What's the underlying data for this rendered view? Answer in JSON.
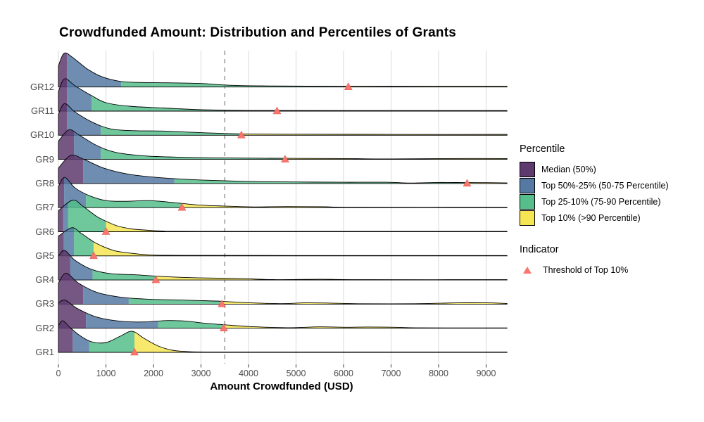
{
  "chart": {
    "title": "Crowdfunded Amount: Distribution and Percentiles of Grants",
    "x_axis_title": "Amount Crowdfunded (USD)",
    "legend": {
      "percentile_title": "Percentile",
      "items": [
        {
          "label": "Median (50%)",
          "color": "#5E3A6F"
        },
        {
          "label": "Top 50%-25% (50-75 Percentile)",
          "color": "#5579A3"
        },
        {
          "label": "Top 25-10% (75-90 Percentile)",
          "color": "#55BE8B"
        },
        {
          "label": "Top 10% (>90 Percentile)",
          "color": "#F6E553"
        }
      ],
      "indicator_title": "Indicator",
      "indicator_label": "Threshold of Top 10%",
      "indicator_color": "#F8766D"
    }
  },
  "chart_data": {
    "type": "ridgeline-density-with-percentile-bands",
    "title": "Crowdfunded Amount: Distribution and Percentiles of Grants",
    "xlabel": "Amount Crowdfunded (USD)",
    "x_ticks": [
      0,
      1000,
      2000,
      3000,
      4000,
      5000,
      6000,
      7000,
      8000,
      9000
    ],
    "x_range": [
      0,
      9440
    ],
    "reference_line_x": 3500,
    "band_colors": {
      "median_50": "#5E3A6F",
      "p50_75": "#5579A3",
      "p75_90": "#55BE8B",
      "top10": "#F6E553"
    },
    "threshold_marker_color": "#F8766D",
    "groups_bottom_to_top": [
      {
        "label": "GR1",
        "median": 300,
        "p75": 650,
        "p90_threshold": 1600,
        "density_profile": [
          [
            0,
            38
          ],
          [
            90,
            45
          ],
          [
            250,
            35
          ],
          [
            450,
            24
          ],
          [
            700,
            15
          ],
          [
            1000,
            14
          ],
          [
            1300,
            23
          ],
          [
            1550,
            30
          ],
          [
            1800,
            20
          ],
          [
            2100,
            9
          ],
          [
            2400,
            3
          ],
          [
            2700,
            1.2
          ],
          [
            3200,
            0.6
          ],
          [
            6000,
            0.5
          ],
          [
            9440,
            0.5
          ]
        ]
      },
      {
        "label": "GR2",
        "median": 580,
        "p75": 2100,
        "p90_threshold": 3480,
        "density_profile": [
          [
            0,
            36
          ],
          [
            140,
            40
          ],
          [
            400,
            28
          ],
          [
            800,
            16
          ],
          [
            1300,
            10
          ],
          [
            1800,
            9
          ],
          [
            2300,
            11
          ],
          [
            2700,
            10
          ],
          [
            3100,
            7
          ],
          [
            3480,
            5
          ],
          [
            4000,
            2.5
          ],
          [
            4800,
            0.8
          ],
          [
            5500,
            2
          ],
          [
            6100,
            1.4
          ],
          [
            6500,
            1.8
          ],
          [
            7100,
            1.4
          ],
          [
            7600,
            0.6
          ],
          [
            9440,
            0.5
          ]
        ]
      },
      {
        "label": "GR3",
        "median": 520,
        "p75": 1480,
        "p90_threshold": 3440,
        "density_profile": [
          [
            0,
            30
          ],
          [
            160,
            44
          ],
          [
            420,
            30
          ],
          [
            800,
            17
          ],
          [
            1300,
            10
          ],
          [
            1900,
            7
          ],
          [
            2500,
            6
          ],
          [
            3000,
            5
          ],
          [
            3440,
            4
          ],
          [
            4000,
            2
          ],
          [
            4700,
            0.7
          ],
          [
            5200,
            1.8
          ],
          [
            5700,
            1.5
          ],
          [
            6300,
            0.6
          ],
          [
            7500,
            0.6
          ],
          [
            8400,
            1.8
          ],
          [
            9000,
            1.8
          ],
          [
            9440,
            1
          ]
        ]
      },
      {
        "label": "GR4",
        "median": 250,
        "p75": 720,
        "p90_threshold": 2050,
        "density_profile": [
          [
            0,
            34
          ],
          [
            130,
            42
          ],
          [
            350,
            28
          ],
          [
            700,
            15
          ],
          [
            1100,
            9
          ],
          [
            1600,
            7.5
          ],
          [
            2050,
            5.5
          ],
          [
            2500,
            4
          ],
          [
            3000,
            3
          ],
          [
            3840,
            2
          ],
          [
            4500,
            0.6
          ],
          [
            5500,
            1
          ],
          [
            6500,
            0.5
          ],
          [
            9440,
            0.5
          ]
        ]
      },
      {
        "label": "GR5",
        "median": 110,
        "p75": 330,
        "p90_threshold": 740,
        "density_profile": [
          [
            0,
            28
          ],
          [
            280,
            40
          ],
          [
            480,
            32
          ],
          [
            740,
            20
          ],
          [
            950,
            13
          ],
          [
            1200,
            7
          ],
          [
            1500,
            4
          ],
          [
            1800,
            2
          ],
          [
            2300,
            0.8
          ],
          [
            5000,
            0.5
          ],
          [
            9440,
            0.5
          ]
        ]
      },
      {
        "label": "GR6",
        "median": 100,
        "p75": 200,
        "p90_threshold": 1000,
        "density_profile": [
          [
            0,
            30
          ],
          [
            300,
            45
          ],
          [
            520,
            36
          ],
          [
            800,
            22
          ],
          [
            1000,
            15
          ],
          [
            1250,
            8
          ],
          [
            1550,
            4
          ],
          [
            1800,
            2.5
          ],
          [
            2200,
            1
          ],
          [
            3000,
            0.6
          ],
          [
            9440,
            0.5
          ]
        ]
      },
      {
        "label": "GR7",
        "median": 120,
        "p75": 580,
        "p90_threshold": 2600,
        "density_profile": [
          [
            0,
            30
          ],
          [
            130,
            43
          ],
          [
            350,
            28
          ],
          [
            650,
            17
          ],
          [
            1000,
            10
          ],
          [
            1400,
            9
          ],
          [
            1900,
            10
          ],
          [
            2300,
            8
          ],
          [
            2600,
            6
          ],
          [
            3000,
            3.5
          ],
          [
            3600,
            2
          ],
          [
            4100,
            1
          ],
          [
            4800,
            1.5
          ],
          [
            5600,
            1.2
          ],
          [
            6200,
            0.6
          ],
          [
            9440,
            0.6
          ]
        ]
      },
      {
        "label": "GR8",
        "median": 520,
        "p75": 2440,
        "p90_threshold": 8600,
        "density_profile": [
          [
            0,
            22
          ],
          [
            260,
            40
          ],
          [
            550,
            34
          ],
          [
            950,
            22
          ],
          [
            1500,
            13
          ],
          [
            2200,
            8
          ],
          [
            3000,
            5
          ],
          [
            4000,
            3
          ],
          [
            5000,
            2.2
          ],
          [
            6000,
            1.8
          ],
          [
            6900,
            1.8
          ],
          [
            7400,
            0.7
          ],
          [
            8000,
            1.5
          ],
          [
            8600,
            1.3
          ],
          [
            9000,
            1.2
          ],
          [
            9440,
            0.8
          ]
        ]
      },
      {
        "label": "GR9",
        "median": 330,
        "p75": 890,
        "p90_threshold": 4770,
        "density_profile": [
          [
            0,
            26
          ],
          [
            220,
            42
          ],
          [
            450,
            34
          ],
          [
            800,
            20
          ],
          [
            1200,
            10
          ],
          [
            1800,
            5
          ],
          [
            2600,
            3
          ],
          [
            3500,
            2
          ],
          [
            4770,
            1.5
          ],
          [
            6000,
            1.2
          ],
          [
            7000,
            0.6
          ],
          [
            8200,
            1.2
          ],
          [
            9440,
            1.2
          ]
        ]
      },
      {
        "label": "GR10",
        "median": 180,
        "p75": 890,
        "p90_threshold": 3850,
        "density_profile": [
          [
            0,
            30
          ],
          [
            130,
            45
          ],
          [
            350,
            33
          ],
          [
            700,
            19
          ],
          [
            1100,
            9
          ],
          [
            1600,
            6.5
          ],
          [
            2200,
            6
          ],
          [
            2900,
            4
          ],
          [
            3850,
            2
          ],
          [
            5000,
            1.5
          ],
          [
            7000,
            1.2
          ],
          [
            9440,
            1.2
          ]
        ]
      },
      {
        "label": "GR11",
        "median": 180,
        "p75": 700,
        "p90_threshold": 4600,
        "density_profile": [
          [
            0,
            28
          ],
          [
            130,
            46
          ],
          [
            350,
            36
          ],
          [
            700,
            22
          ],
          [
            1000,
            12
          ],
          [
            1500,
            7
          ],
          [
            2200,
            4.5
          ],
          [
            3000,
            2
          ],
          [
            3800,
            1
          ],
          [
            4600,
            0.9
          ],
          [
            7000,
            0.8
          ],
          [
            9440,
            0.8
          ]
        ]
      },
      {
        "label": "GR12",
        "median": 180,
        "p75": 1320,
        "p90_threshold": 6100,
        "density_profile": [
          [
            0,
            30
          ],
          [
            120,
            48
          ],
          [
            300,
            42
          ],
          [
            600,
            26
          ],
          [
            900,
            15
          ],
          [
            1300,
            8
          ],
          [
            1700,
            6.5
          ],
          [
            2300,
            6
          ],
          [
            3000,
            5
          ],
          [
            3600,
            2.5
          ],
          [
            4500,
            1.5
          ],
          [
            6100,
            1
          ],
          [
            8000,
            1
          ],
          [
            9440,
            1
          ]
        ]
      }
    ]
  }
}
